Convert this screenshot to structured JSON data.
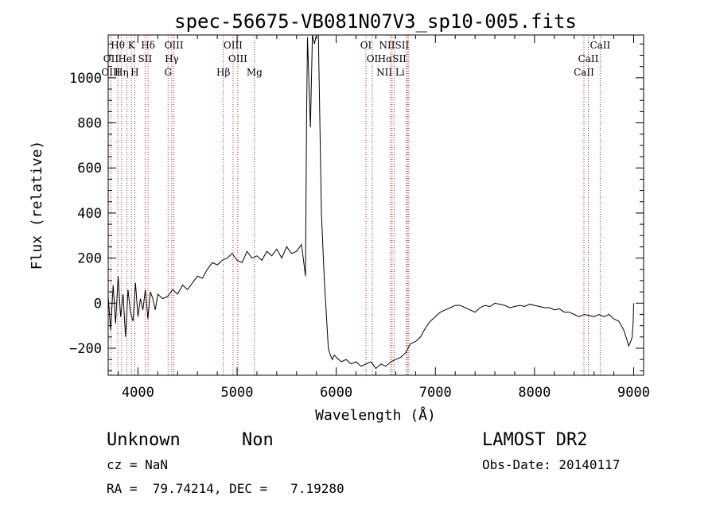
{
  "chart_data": {
    "type": "line",
    "title": "spec-56675-VB081N07V3_sp10-005.fits",
    "xlabel": "Wavelength (Å)",
    "ylabel": "Flux (relative)",
    "xlim": [
      3700,
      9100
    ],
    "ylim": [
      -320,
      1190
    ],
    "xticks": [
      "4000",
      "5000",
      "6000",
      "7000",
      "8000",
      "9000"
    ],
    "yticks": [
      "−200",
      "0",
      "200",
      "400",
      "600",
      "800",
      "1000"
    ],
    "xtick_values": [
      4000,
      5000,
      6000,
      7000,
      8000,
      9000
    ],
    "ytick_values": [
      -200,
      0,
      200,
      400,
      600,
      800,
      1000
    ],
    "series": [
      {
        "x": [
          3700,
          3725,
          3750,
          3775,
          3800,
          3825,
          3850,
          3875,
          3900,
          3925,
          3950,
          3975,
          4000,
          4025,
          4050,
          4075,
          4100,
          4125,
          4150,
          4175,
          4200,
          4250,
          4300,
          4350,
          4400,
          4450,
          4500,
          4550,
          4600,
          4650,
          4700,
          4750,
          4800,
          4850,
          4900,
          4950,
          5000,
          5050,
          5100,
          5150,
          5200,
          5250,
          5300,
          5350,
          5400,
          5450,
          5500,
          5550,
          5600,
          5650,
          5690,
          5700,
          5710,
          5740,
          5760,
          5780,
          5800,
          5820,
          5850,
          5880,
          5900,
          5920,
          5940,
          5960,
          5980,
          6000,
          6050,
          6100,
          6150,
          6200,
          6250,
          6300,
          6350,
          6400,
          6450,
          6500,
          6550,
          6600,
          6650,
          6700,
          6750,
          6800,
          6850,
          6900,
          6950,
          7000,
          7050,
          7100,
          7150,
          7200,
          7250,
          7300,
          7350,
          7400,
          7450,
          7500,
          7550,
          7600,
          7650,
          7700,
          7750,
          7800,
          7850,
          7900,
          7950,
          8000,
          8050,
          8100,
          8150,
          8200,
          8250,
          8300,
          8350,
          8400,
          8450,
          8500,
          8550,
          8600,
          8650,
          8700,
          8750,
          8800,
          8850,
          8900,
          8930,
          8950,
          8970,
          8985,
          8995,
          9000
        ],
        "y": [
          30,
          -120,
          80,
          -90,
          120,
          -60,
          40,
          -150,
          60,
          -40,
          -80,
          90,
          -60,
          20,
          -30,
          60,
          -70,
          50,
          20,
          -30,
          40,
          20,
          30,
          60,
          40,
          80,
          60,
          90,
          120,
          110,
          150,
          180,
          170,
          190,
          200,
          220,
          190,
          180,
          230,
          200,
          210,
          190,
          230,
          210,
          240,
          200,
          250,
          220,
          230,
          260,
          120,
          800,
          1180,
          780,
          1200,
          1150,
          1190,
          1240,
          400,
          100,
          -50,
          -200,
          -230,
          -250,
          -230,
          -240,
          -260,
          -250,
          -270,
          -260,
          -280,
          -270,
          -260,
          -290,
          -270,
          -280,
          -260,
          -250,
          -240,
          -220,
          -180,
          -170,
          -150,
          -110,
          -80,
          -60,
          -40,
          -30,
          -20,
          -10,
          -10,
          -20,
          -30,
          -40,
          -20,
          -10,
          -15,
          0,
          -5,
          -10,
          -20,
          -15,
          -10,
          -15,
          -5,
          -10,
          -15,
          -20,
          -20,
          -30,
          -25,
          -40,
          -40,
          -50,
          -60,
          -50,
          -55,
          -60,
          -50,
          -60,
          -50,
          -70,
          -80,
          -120,
          -160,
          -190,
          -170,
          -150,
          -80,
          0
        ]
      }
    ],
    "lines": [
      {
        "label": "Hθ",
        "x": 3797,
        "row": 0
      },
      {
        "label": "K",
        "x": 3934,
        "row": 0
      },
      {
        "label": "Hδ",
        "x": 4102,
        "row": 0
      },
      {
        "label": "OIII",
        "x": 4363,
        "row": 0
      },
      {
        "label": "OIII",
        "x": 4959,
        "row": 0
      },
      {
        "label": "OI",
        "x": 6300,
        "row": 0
      },
      {
        "label": "NIISII",
        "x": 6584,
        "row": 0
      },
      {
        "label": "CaII",
        "x": 8662,
        "row": 0
      },
      {
        "label": "OII",
        "x": 3727,
        "row": 1
      },
      {
        "label": "HeI",
        "x": 3889,
        "row": 1
      },
      {
        "label": "SII",
        "x": 4072,
        "row": 1
      },
      {
        "label": "Hγ",
        "x": 4341,
        "row": 1
      },
      {
        "label": "OIII",
        "x": 5007,
        "row": 1
      },
      {
        "label": "OI",
        "x": 6364,
        "row": 1
      },
      {
        "label": "HαSII",
        "x": 6563,
        "row": 1
      },
      {
        "label": "CaII",
        "x": 8542,
        "row": 1
      },
      {
        "label": "OIII",
        "x": 3727,
        "row": 2
      },
      {
        "label": "Hη",
        "x": 3835,
        "row": 2
      },
      {
        "label": "H",
        "x": 3968,
        "row": 2
      },
      {
        "label": "G",
        "x": 4304,
        "row": 2
      },
      {
        "label": "Hβ",
        "x": 4861,
        "row": 2
      },
      {
        "label": "Mg",
        "x": 5175,
        "row": 2
      },
      {
        "label": "NII Li",
        "x": 6548,
        "row": 2
      },
      {
        "label": "CaII",
        "x": 8498,
        "row": 2
      }
    ],
    "line_marks": [
      3727,
      3797,
      3835,
      3889,
      3934,
      3968,
      4072,
      4102,
      4304,
      4341,
      4363,
      4861,
      4959,
      5007,
      5175,
      6300,
      6364,
      6548,
      6563,
      6584,
      6708,
      6717,
      6731,
      8498,
      8542,
      8662
    ],
    "grid": false,
    "legend": "none"
  },
  "info": {
    "class_label": "Unknown",
    "subclass_label": "Non",
    "survey": "LAMOST DR2",
    "cz": "cz = NaN",
    "obs_date": "Obs-Date: 20140117",
    "radec": "RA =  79.74214, DEC =   7.19280"
  },
  "colors": {
    "axis": "#000000",
    "spectrum": "#000000",
    "line_marker": "#b22222",
    "background": "#ffffff"
  }
}
